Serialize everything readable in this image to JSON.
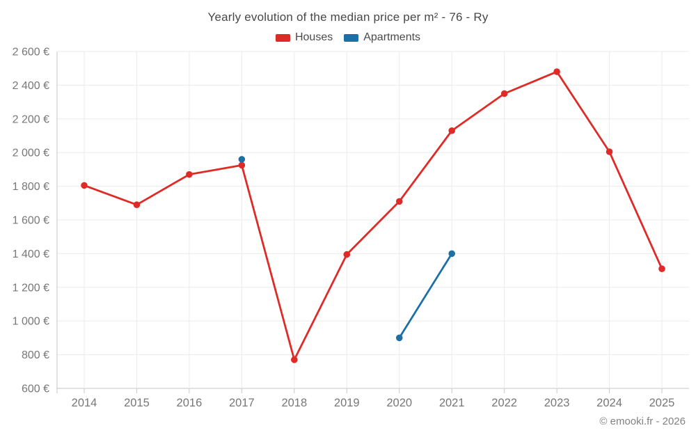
{
  "title": "Yearly evolution of the median price per m² - 76 - Ry",
  "legend": [
    {
      "label": "Houses",
      "color": "#df2b27"
    },
    {
      "label": "Apartments",
      "color": "#1d70a6"
    }
  ],
  "footer": {
    "copyright": "© emooki.fr - 2026"
  },
  "colors": {
    "houses": "#df2b27",
    "apartments": "#1d70a6",
    "grid": "#ebebeb",
    "axis": "#c6c6c6",
    "axis_label": "#777777",
    "title_text": "#474747",
    "copyright_text": "#828282"
  },
  "chart_data": {
    "type": "line",
    "title": "Yearly evolution of the median price per m² - 76 - Ry",
    "x": [
      "2014",
      "2015",
      "2016",
      "2017",
      "2018",
      "2019",
      "2020",
      "2021",
      "2022",
      "2023",
      "2024",
      "2025"
    ],
    "series": [
      {
        "name": "Houses",
        "color": "#df2b27",
        "values": [
          1805,
          1690,
          1870,
          1925,
          770,
          1395,
          1710,
          2130,
          2350,
          2480,
          2005,
          1310
        ]
      },
      {
        "name": "Apartments",
        "color": "#1d70a6",
        "values": [
          null,
          null,
          null,
          1960,
          null,
          null,
          900,
          1400,
          null,
          null,
          null,
          null
        ]
      }
    ],
    "ylim": [
      600,
      2600
    ],
    "ytick_step": 200,
    "yticks": [
      {
        "value": 600,
        "label": "600 €"
      },
      {
        "value": 800,
        "label": "800 €"
      },
      {
        "value": 1000,
        "label": "1 000 €"
      },
      {
        "value": 1200,
        "label": "1 200 €"
      },
      {
        "value": 1400,
        "label": "1 400 €"
      },
      {
        "value": 1600,
        "label": "1 600 €"
      },
      {
        "value": 1800,
        "label": "1 800 €"
      },
      {
        "value": 2000,
        "label": "2 000 €"
      },
      {
        "value": 2200,
        "label": "2 200 €"
      },
      {
        "value": 2400,
        "label": "2 400 €"
      },
      {
        "value": 2600,
        "label": "2 600 €"
      }
    ],
    "grid": true,
    "legend_position": "top",
    "currency": "€"
  }
}
